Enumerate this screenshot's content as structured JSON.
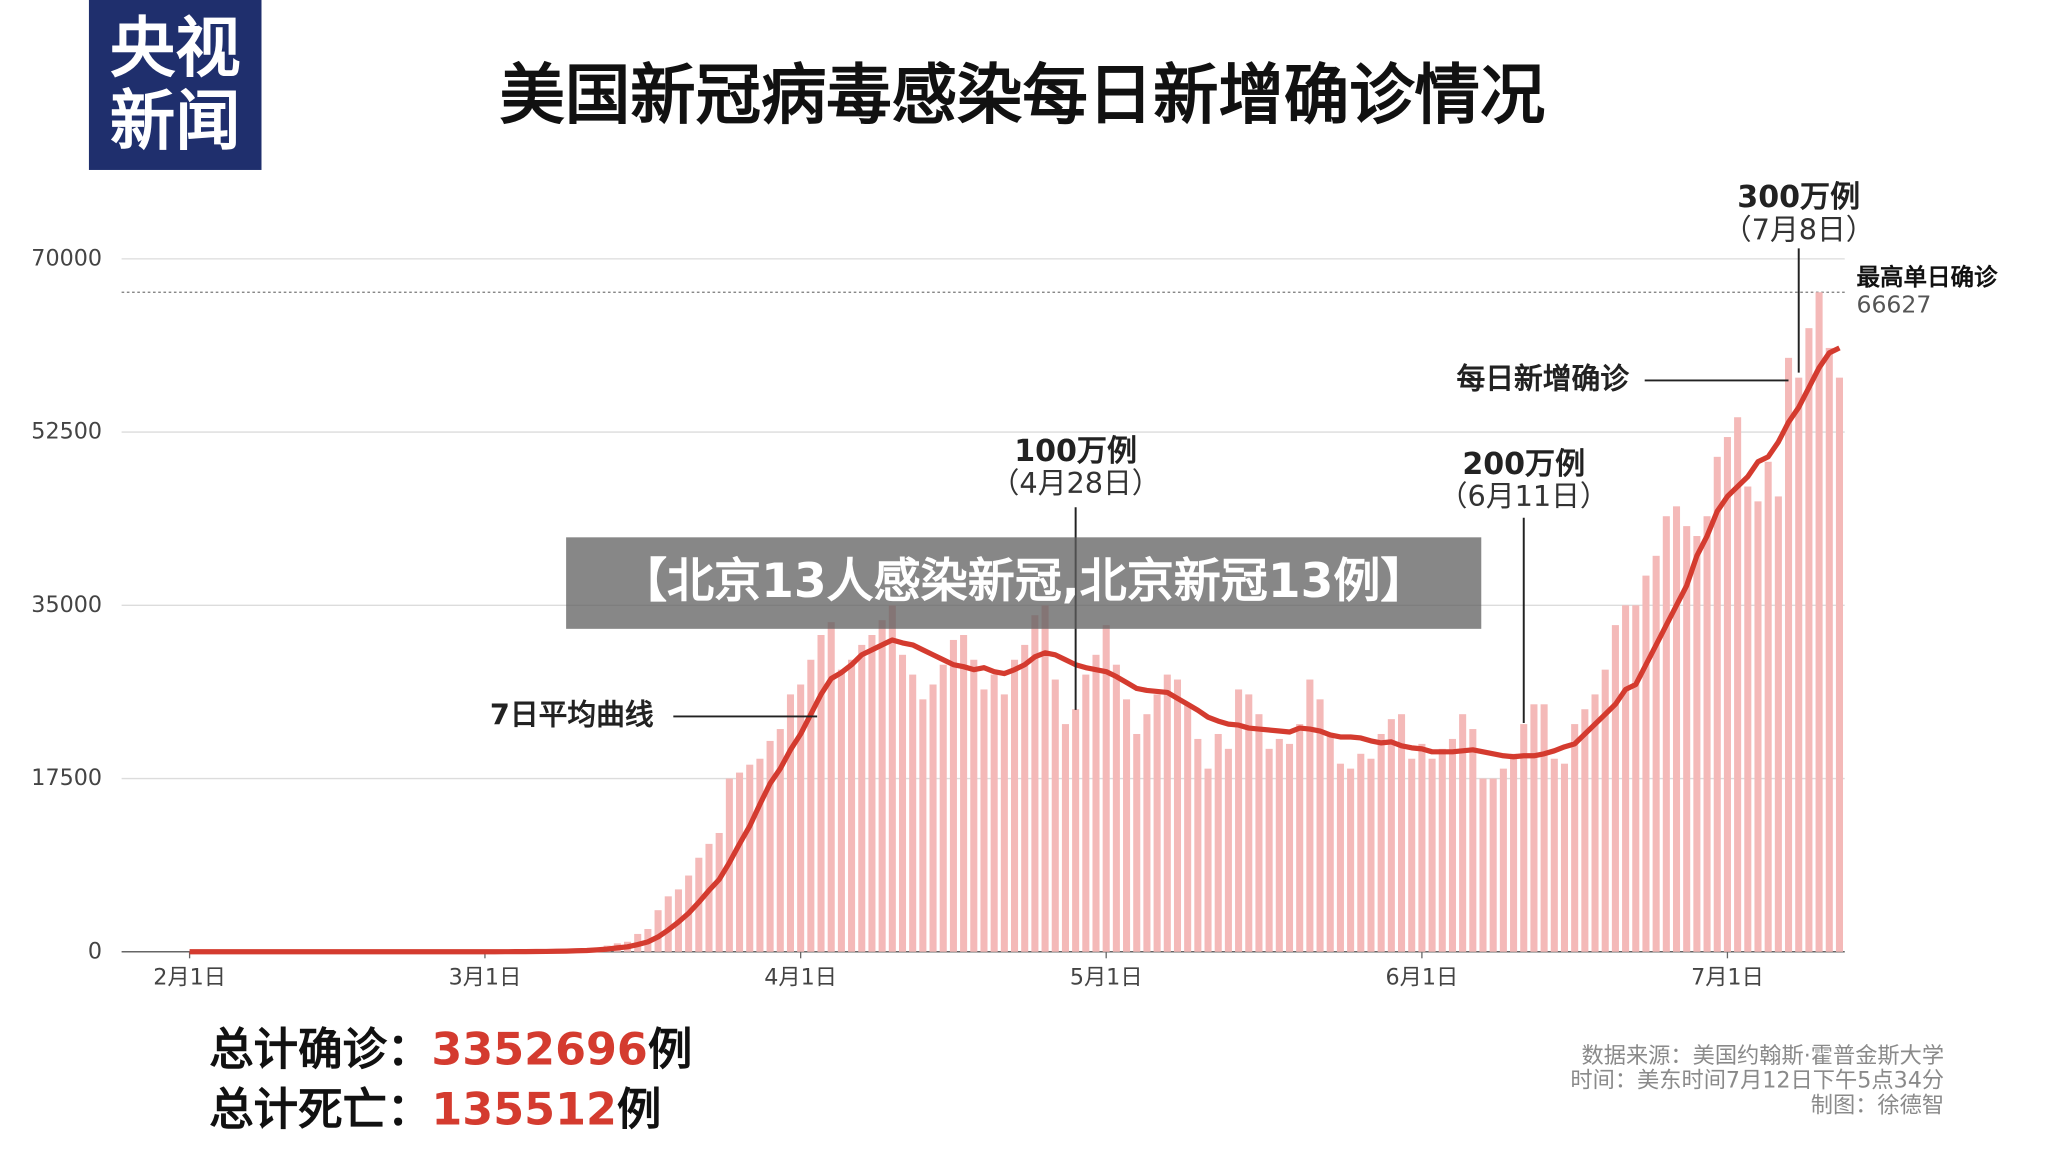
{
  "logo": {
    "line1": "央视",
    "line2": "新闻"
  },
  "banner": "【北京13人感染新冠,北京新冠13例】",
  "chart_data": {
    "type": "bar",
    "title": "美国新冠病毒感染每日新增确诊情况",
    "categories": [
      "2月1日",
      null,
      null,
      null,
      null,
      null,
      null,
      null,
      null,
      null,
      null,
      null,
      null,
      null,
      null,
      null,
      null,
      null,
      null,
      null,
      null,
      null,
      null,
      null,
      null,
      null,
      null,
      null,
      null,
      "3月1日",
      null,
      null,
      null,
      null,
      null,
      null,
      null,
      null,
      null,
      null,
      null,
      null,
      null,
      null,
      null,
      null,
      null,
      null,
      null,
      null,
      null,
      null,
      null,
      null,
      null,
      null,
      null,
      null,
      null,
      null,
      "4月1日",
      null,
      null,
      null,
      null,
      null,
      null,
      null,
      null,
      null,
      null,
      null,
      null,
      null,
      null,
      null,
      null,
      null,
      null,
      null,
      null,
      null,
      null,
      null,
      null,
      null,
      null,
      null,
      null,
      null,
      "5月1日",
      null,
      null,
      null,
      null,
      null,
      null,
      null,
      null,
      null,
      null,
      null,
      null,
      null,
      null,
      null,
      null,
      null,
      null,
      null,
      null,
      null,
      null,
      null,
      null,
      null,
      null,
      null,
      null,
      null,
      null,
      "6月1日",
      null,
      null,
      null,
      null,
      null,
      null,
      null,
      null,
      null,
      null,
      null,
      null,
      null,
      null,
      null,
      null,
      null,
      null,
      null,
      null,
      null,
      null,
      null,
      null,
      null,
      null,
      null,
      null,
      null,
      "7月1日",
      null,
      null,
      null,
      null,
      null,
      null,
      null,
      null,
      null,
      null,
      null
    ],
    "series": [
      {
        "name": "每日新增确诊",
        "type": "bar",
        "color": "#f4b9b8",
        "values": [
          0,
          1,
          3,
          0,
          0,
          0,
          0,
          0,
          0,
          1,
          1,
          0,
          1,
          0,
          0,
          0,
          0,
          0,
          0,
          0,
          2,
          0,
          0,
          0,
          0,
          1,
          2,
          1,
          5,
          8,
          7,
          23,
          19,
          33,
          77,
          55,
          120,
          135,
          290,
          270,
          420,
          620,
          850,
          1010,
          1800,
          2300,
          4200,
          5600,
          6300,
          7700,
          9500,
          10900,
          12000,
          17500,
          18100,
          18900,
          19500,
          21300,
          22500,
          26000,
          27000,
          29500,
          32000,
          33300,
          28500,
          29500,
          31000,
          32000,
          33500,
          35000,
          30000,
          28000,
          25500,
          27000,
          29000,
          31500,
          32000,
          29500,
          26500,
          28000,
          26000,
          29500,
          31000,
          34000,
          35000,
          27500,
          23000,
          24500,
          28000,
          30000,
          33000,
          29000,
          25500,
          22000,
          24000,
          26000,
          28000,
          27500,
          25000,
          21500,
          18500,
          22000,
          20500,
          26500,
          26000,
          24000,
          20500,
          21500,
          21000,
          23000,
          27500,
          25500,
          22000,
          19000,
          18500,
          20000,
          19500,
          22000,
          23500,
          24000,
          19500,
          21000,
          19500,
          20500,
          21500,
          24000,
          22500,
          17500,
          17500,
          18500,
          20000,
          23000,
          25000,
          25000,
          19500,
          19000,
          23000,
          24500,
          26000,
          28500,
          33000,
          35000,
          35000,
          38000,
          40000,
          44000,
          45000,
          43000,
          42000,
          44000,
          50000,
          52000,
          54000,
          47000,
          45500,
          49500,
          46000,
          60000,
          58000,
          63000,
          66627,
          61000,
          58000
        ]
      },
      {
        "name": "7日平均曲线",
        "type": "line",
        "color": "#d43b2f",
        "values": [
          0,
          0,
          0,
          0,
          0,
          0,
          0,
          0,
          0,
          0,
          0,
          0,
          0,
          0,
          0,
          0,
          0,
          0,
          0,
          0,
          0,
          0,
          0,
          0,
          0,
          0,
          0,
          1,
          1,
          2,
          4,
          7,
          9,
          14,
          25,
          32,
          50,
          66,
          100,
          130,
          190,
          270,
          390,
          500,
          730,
          1000,
          1500,
          2200,
          3000,
          3900,
          5000,
          6200,
          7300,
          9000,
          10900,
          12700,
          14900,
          17000,
          18500,
          20400,
          22000,
          24000,
          26000,
          27600,
          28200,
          29000,
          30000,
          30500,
          31000,
          31500,
          31200,
          31000,
          30500,
          30000,
          29500,
          29000,
          28800,
          28500,
          28700,
          28300,
          28100,
          28500,
          29000,
          29800,
          30200,
          30000,
          29500,
          29000,
          28700,
          28500,
          28300,
          27800,
          27200,
          26600,
          26400,
          26300,
          26200,
          25600,
          25000,
          24400,
          23700,
          23300,
          23000,
          22900,
          22600,
          22500,
          22400,
          22300,
          22200,
          22600,
          22500,
          22300,
          21900,
          21700,
          21700,
          21600,
          21300,
          21100,
          21200,
          20800,
          20600,
          20500,
          20200,
          20200,
          20200,
          20300,
          20400,
          20200,
          20000,
          19800,
          19700,
          19800,
          19800,
          20000,
          20300,
          20700,
          21000,
          22000,
          23000,
          24000,
          25000,
          26500,
          27000,
          29000,
          31000,
          33000,
          35000,
          37000,
          40000,
          42000,
          44500,
          46000,
          47000,
          48000,
          49500,
          50000,
          51500,
          53500,
          55000,
          57000,
          59000,
          60500,
          61000
        ]
      }
    ],
    "ylim": [
      0,
      70000
    ],
    "yticks": [
      0,
      17500,
      35000,
      52500,
      70000
    ],
    "grid": true,
    "peak": {
      "label": "最高单日确诊",
      "value": 66627
    },
    "annotations": [
      {
        "label": "100万例",
        "date": "（4月28日）"
      },
      {
        "label": "200万例",
        "date": "（6月11日）"
      },
      {
        "label": "300万例",
        "date": "（7月8日）"
      }
    ]
  },
  "totals": {
    "cases_label": "总计确诊：",
    "cases": 3352696,
    "cases_unit": "例",
    "deaths_label": "总计死亡：",
    "deaths": 135512,
    "deaths_unit": "例"
  },
  "source": [
    "数据来源：美国约翰斯·霍普金斯大学",
    "时间：美东时间7月12日下午5点34分",
    "制图：徐德智"
  ]
}
